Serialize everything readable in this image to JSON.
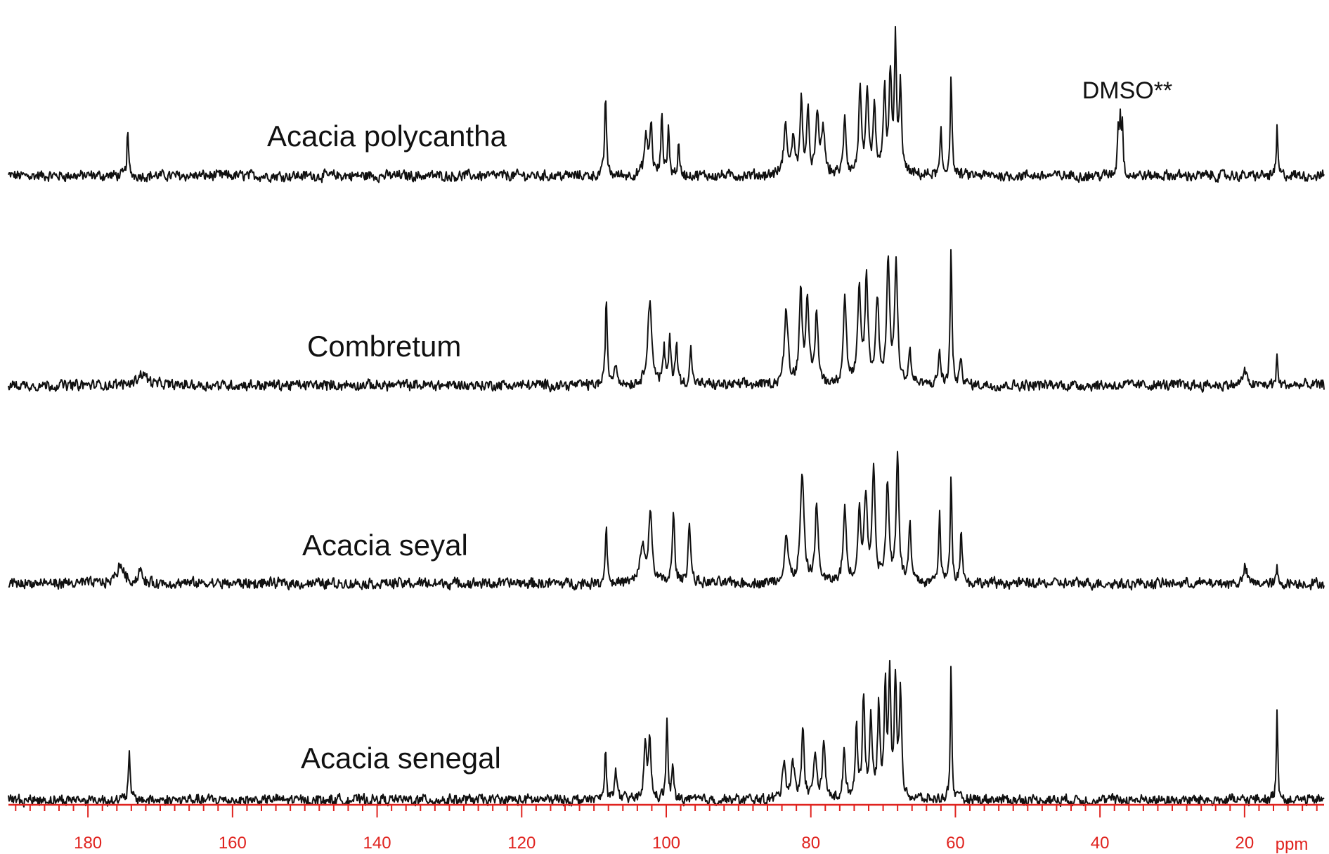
{
  "chart_data": {
    "type": "line",
    "title": "",
    "xlabel": "ppm",
    "ylabel": "",
    "x_reversed": true,
    "xlim": [
      191,
      9
    ],
    "x_major_ticks": [
      180,
      160,
      140,
      120,
      100,
      80,
      60,
      40,
      20
    ],
    "x_major_tick_labels": [
      "180",
      "160",
      "140",
      "120",
      "100",
      "80",
      "60",
      "40",
      "20"
    ],
    "x_minor_tick_step": 2,
    "grid": false,
    "legend": "none",
    "line_color": "#111111",
    "axis_color": "#e0231f",
    "series": [
      {
        "name": "Acacia polycantha",
        "noise": 0.06,
        "peaks": [
          {
            "ppm": 174.5,
            "height": 0.7,
            "width": 0.12
          },
          {
            "ppm": 108.4,
            "height": 1.25,
            "width": 0.14
          },
          {
            "ppm": 102.8,
            "height": 0.55,
            "width": 0.3
          },
          {
            "ppm": 102.1,
            "height": 0.75,
            "width": 0.18
          },
          {
            "ppm": 100.6,
            "height": 0.95,
            "width": 0.14
          },
          {
            "ppm": 99.7,
            "height": 0.75,
            "width": 0.14
          },
          {
            "ppm": 98.3,
            "height": 0.45,
            "width": 0.14
          },
          {
            "ppm": 83.5,
            "height": 0.7,
            "width": 0.3
          },
          {
            "ppm": 82.4,
            "height": 0.55,
            "width": 0.25
          },
          {
            "ppm": 81.3,
            "height": 1.1,
            "width": 0.2
          },
          {
            "ppm": 80.4,
            "height": 0.9,
            "width": 0.2
          },
          {
            "ppm": 79.1,
            "height": 0.85,
            "width": 0.25
          },
          {
            "ppm": 78.3,
            "height": 0.7,
            "width": 0.25
          },
          {
            "ppm": 75.3,
            "height": 0.9,
            "width": 0.2
          },
          {
            "ppm": 73.2,
            "height": 1.25,
            "width": 0.22
          },
          {
            "ppm": 72.2,
            "height": 1.15,
            "width": 0.22
          },
          {
            "ppm": 71.2,
            "height": 0.95,
            "width": 0.22
          },
          {
            "ppm": 69.8,
            "height": 1.3,
            "width": 0.2
          },
          {
            "ppm": 69.0,
            "height": 1.45,
            "width": 0.2
          },
          {
            "ppm": 68.3,
            "height": 2.0,
            "width": 0.16
          },
          {
            "ppm": 67.6,
            "height": 1.3,
            "width": 0.2
          },
          {
            "ppm": 62.0,
            "height": 0.65,
            "width": 0.14
          },
          {
            "ppm": 60.6,
            "height": 1.55,
            "width": 0.14
          },
          {
            "ppm": 37.5,
            "height": 0.7,
            "width": 0.12
          },
          {
            "ppm": 37.2,
            "height": 0.85,
            "width": 0.12
          },
          {
            "ppm": 36.9,
            "height": 0.75,
            "width": 0.12
          },
          {
            "ppm": 15.5,
            "height": 0.72,
            "width": 0.12
          }
        ]
      },
      {
        "name": "Combretum",
        "noise": 0.06,
        "peaks": [
          {
            "ppm": 172.5,
            "height": 0.18,
            "width": 0.8
          },
          {
            "ppm": 108.3,
            "height": 1.35,
            "width": 0.14
          },
          {
            "ppm": 107.0,
            "height": 0.3,
            "width": 0.3
          },
          {
            "ppm": 102.3,
            "height": 1.25,
            "width": 0.35
          },
          {
            "ppm": 100.3,
            "height": 0.5,
            "width": 0.18
          },
          {
            "ppm": 99.5,
            "height": 0.65,
            "width": 0.18
          },
          {
            "ppm": 98.6,
            "height": 0.6,
            "width": 0.18
          },
          {
            "ppm": 96.6,
            "height": 0.55,
            "width": 0.18
          },
          {
            "ppm": 83.4,
            "height": 1.1,
            "width": 0.3
          },
          {
            "ppm": 81.4,
            "height": 1.35,
            "width": 0.25
          },
          {
            "ppm": 80.5,
            "height": 1.2,
            "width": 0.25
          },
          {
            "ppm": 79.2,
            "height": 1.05,
            "width": 0.25
          },
          {
            "ppm": 75.3,
            "height": 1.3,
            "width": 0.25
          },
          {
            "ppm": 73.3,
            "height": 1.35,
            "width": 0.25
          },
          {
            "ppm": 72.3,
            "height": 1.55,
            "width": 0.25
          },
          {
            "ppm": 70.8,
            "height": 1.25,
            "width": 0.25
          },
          {
            "ppm": 69.3,
            "height": 1.8,
            "width": 0.25
          },
          {
            "ppm": 68.2,
            "height": 1.75,
            "width": 0.25
          },
          {
            "ppm": 66.3,
            "height": 0.5,
            "width": 0.2
          },
          {
            "ppm": 62.2,
            "height": 0.55,
            "width": 0.16
          },
          {
            "ppm": 60.6,
            "height": 2.05,
            "width": 0.14
          },
          {
            "ppm": 59.2,
            "height": 0.45,
            "width": 0.16
          },
          {
            "ppm": 20.0,
            "height": 0.22,
            "width": 0.3
          },
          {
            "ppm": 15.5,
            "height": 0.45,
            "width": 0.12
          }
        ]
      },
      {
        "name": "Acacia seyal",
        "noise": 0.06,
        "peaks": [
          {
            "ppm": 175.5,
            "height": 0.28,
            "width": 0.6
          },
          {
            "ppm": 172.8,
            "height": 0.22,
            "width": 0.25
          },
          {
            "ppm": 108.3,
            "height": 0.95,
            "width": 0.14
          },
          {
            "ppm": 103.3,
            "height": 0.55,
            "width": 0.35
          },
          {
            "ppm": 102.2,
            "height": 1.0,
            "width": 0.3
          },
          {
            "ppm": 99.0,
            "height": 1.0,
            "width": 0.2
          },
          {
            "ppm": 96.8,
            "height": 0.95,
            "width": 0.2
          },
          {
            "ppm": 83.4,
            "height": 0.7,
            "width": 0.3
          },
          {
            "ppm": 81.2,
            "height": 1.6,
            "width": 0.3
          },
          {
            "ppm": 79.2,
            "height": 1.15,
            "width": 0.25
          },
          {
            "ppm": 75.3,
            "height": 1.1,
            "width": 0.25
          },
          {
            "ppm": 73.3,
            "height": 1.05,
            "width": 0.25
          },
          {
            "ppm": 72.4,
            "height": 1.25,
            "width": 0.25
          },
          {
            "ppm": 71.3,
            "height": 1.65,
            "width": 0.25
          },
          {
            "ppm": 69.4,
            "height": 1.5,
            "width": 0.25
          },
          {
            "ppm": 68.0,
            "height": 1.95,
            "width": 0.22
          },
          {
            "ppm": 66.3,
            "height": 0.85,
            "width": 0.2
          },
          {
            "ppm": 62.2,
            "height": 1.05,
            "width": 0.16
          },
          {
            "ppm": 60.6,
            "height": 1.65,
            "width": 0.14
          },
          {
            "ppm": 59.2,
            "height": 0.85,
            "width": 0.16
          },
          {
            "ppm": 19.9,
            "height": 0.25,
            "width": 0.25
          },
          {
            "ppm": 15.5,
            "height": 0.22,
            "width": 0.12
          }
        ]
      },
      {
        "name": "Acacia senegal",
        "noise": 0.06,
        "peaks": [
          {
            "ppm": 174.3,
            "height": 0.72,
            "width": 0.14
          },
          {
            "ppm": 108.4,
            "height": 0.75,
            "width": 0.14
          },
          {
            "ppm": 107.0,
            "height": 0.55,
            "width": 0.16
          },
          {
            "ppm": 102.9,
            "height": 0.75,
            "width": 0.25
          },
          {
            "ppm": 102.3,
            "height": 0.85,
            "width": 0.2
          },
          {
            "ppm": 99.9,
            "height": 1.25,
            "width": 0.14
          },
          {
            "ppm": 99.1,
            "height": 0.5,
            "width": 0.14
          },
          {
            "ppm": 83.7,
            "height": 0.6,
            "width": 0.25
          },
          {
            "ppm": 82.5,
            "height": 0.6,
            "width": 0.25
          },
          {
            "ppm": 81.1,
            "height": 1.1,
            "width": 0.2
          },
          {
            "ppm": 79.4,
            "height": 0.7,
            "width": 0.25
          },
          {
            "ppm": 78.2,
            "height": 0.9,
            "width": 0.2
          },
          {
            "ppm": 75.4,
            "height": 0.7,
            "width": 0.2
          },
          {
            "ppm": 73.7,
            "height": 1.05,
            "width": 0.2
          },
          {
            "ppm": 72.7,
            "height": 1.55,
            "width": 0.2
          },
          {
            "ppm": 71.7,
            "height": 1.2,
            "width": 0.2
          },
          {
            "ppm": 70.6,
            "height": 1.35,
            "width": 0.2
          },
          {
            "ppm": 69.7,
            "height": 1.6,
            "width": 0.18
          },
          {
            "ppm": 69.1,
            "height": 1.85,
            "width": 0.18
          },
          {
            "ppm": 68.3,
            "height": 1.75,
            "width": 0.18
          },
          {
            "ppm": 67.6,
            "height": 1.55,
            "width": 0.2
          },
          {
            "ppm": 60.6,
            "height": 2.1,
            "width": 0.12
          },
          {
            "ppm": 15.5,
            "height": 1.4,
            "width": 0.12
          }
        ]
      }
    ],
    "annotations": [
      {
        "text": "DMSO**",
        "ppm": 37.2,
        "series": "Acacia polycantha"
      }
    ]
  }
}
